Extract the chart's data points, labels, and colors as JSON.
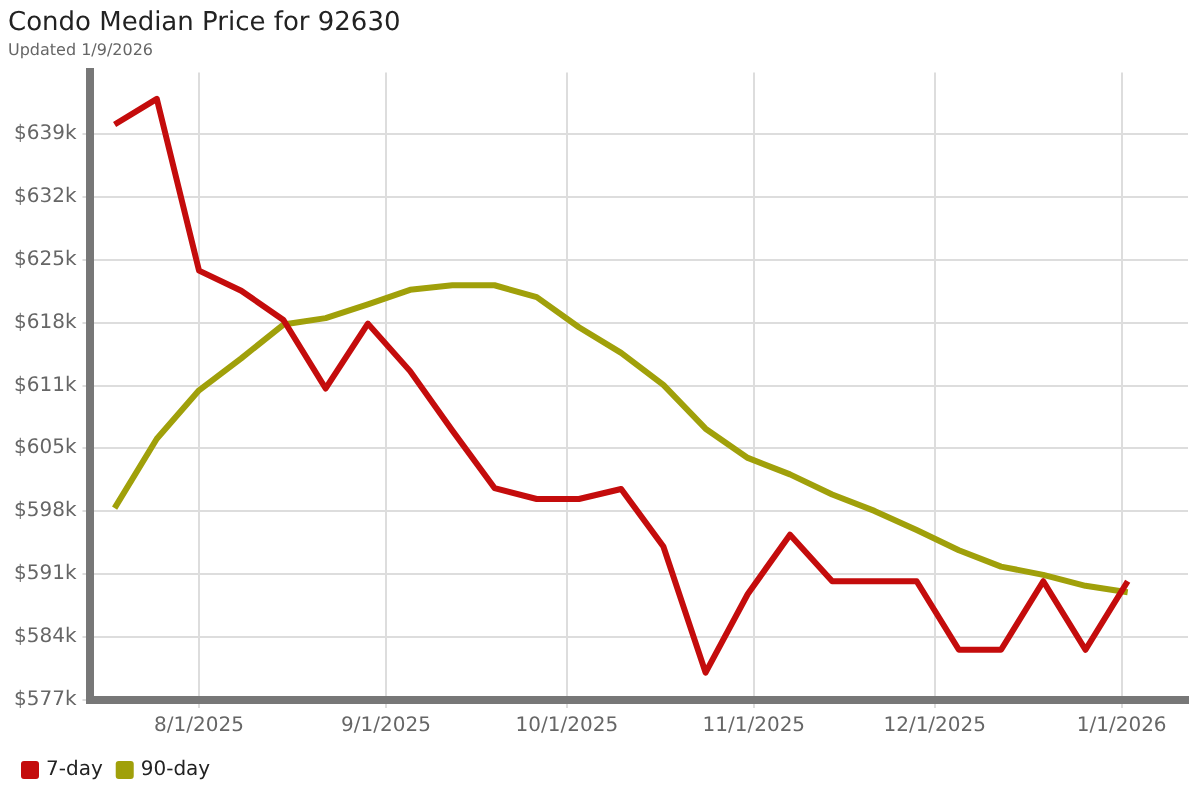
{
  "chart_data": {
    "type": "line",
    "title": "Condo Median Price for 92630",
    "subtitle": "Updated 1/9/2026",
    "x": [
      "2025-07-18",
      "2025-07-25",
      "2025-08-01",
      "2025-08-08",
      "2025-08-15",
      "2025-08-22",
      "2025-08-29",
      "2025-09-05",
      "2025-09-12",
      "2025-09-19",
      "2025-09-26",
      "2025-10-03",
      "2025-10-10",
      "2025-10-17",
      "2025-10-24",
      "2025-10-31",
      "2025-11-07",
      "2025-11-14",
      "2025-11-21",
      "2025-11-28",
      "2025-12-05",
      "2025-12-12",
      "2025-12-19",
      "2025-12-26",
      "2026-01-02"
    ],
    "series": [
      {
        "name": "7-day",
        "color": "#c40c0c",
        "values": [
          640.0,
          642.8,
          624.0,
          621.8,
          618.6,
          611.1,
          618.2,
          613.0,
          606.5,
          600.2,
          599.0,
          599.0,
          600.1,
          593.8,
          580.0,
          588.6,
          595.1,
          590.0,
          590.0,
          590.0,
          582.5,
          582.5,
          590.0,
          582.5,
          590.0
        ]
      },
      {
        "name": "90-day",
        "color": "#a0a00a",
        "values": [
          598.0,
          605.6,
          610.9,
          614.4,
          618.1,
          618.8,
          620.3,
          621.9,
          622.4,
          622.4,
          621.1,
          617.8,
          615.0,
          611.5,
          606.7,
          603.5,
          601.7,
          599.5,
          597.7,
          595.6,
          593.4,
          591.6,
          590.7,
          589.5,
          588.8
        ]
      }
    ],
    "xlim": [
      "2025-07-14",
      "2026-01-12"
    ],
    "xticks": [
      {
        "value": "2025-08-01",
        "label": "8/1/2025"
      },
      {
        "value": "2025-09-01",
        "label": "9/1/2025"
      },
      {
        "value": "2025-10-01",
        "label": "10/1/2025"
      },
      {
        "value": "2025-11-01",
        "label": "11/1/2025"
      },
      {
        "value": "2025-12-01",
        "label": "12/1/2025"
      },
      {
        "value": "2026-01-01",
        "label": "1/1/2026"
      }
    ],
    "ylim": [
      577,
      645.7
    ],
    "yticks": [
      {
        "value": 577,
        "label": "$577k"
      },
      {
        "value": 583.9,
        "label": "$584k"
      },
      {
        "value": 590.8,
        "label": "$591k"
      },
      {
        "value": 597.7,
        "label": "$598k"
      },
      {
        "value": 604.6,
        "label": "$605k"
      },
      {
        "value": 611.4,
        "label": "$611k"
      },
      {
        "value": 618.3,
        "label": "$618k"
      },
      {
        "value": 625.2,
        "label": "$625k"
      },
      {
        "value": 632.1,
        "label": "$632k"
      },
      {
        "value": 639,
        "label": "$639k"
      }
    ],
    "grid": true,
    "legend": "bottom left",
    "marker": "none",
    "line_style": "solid"
  }
}
